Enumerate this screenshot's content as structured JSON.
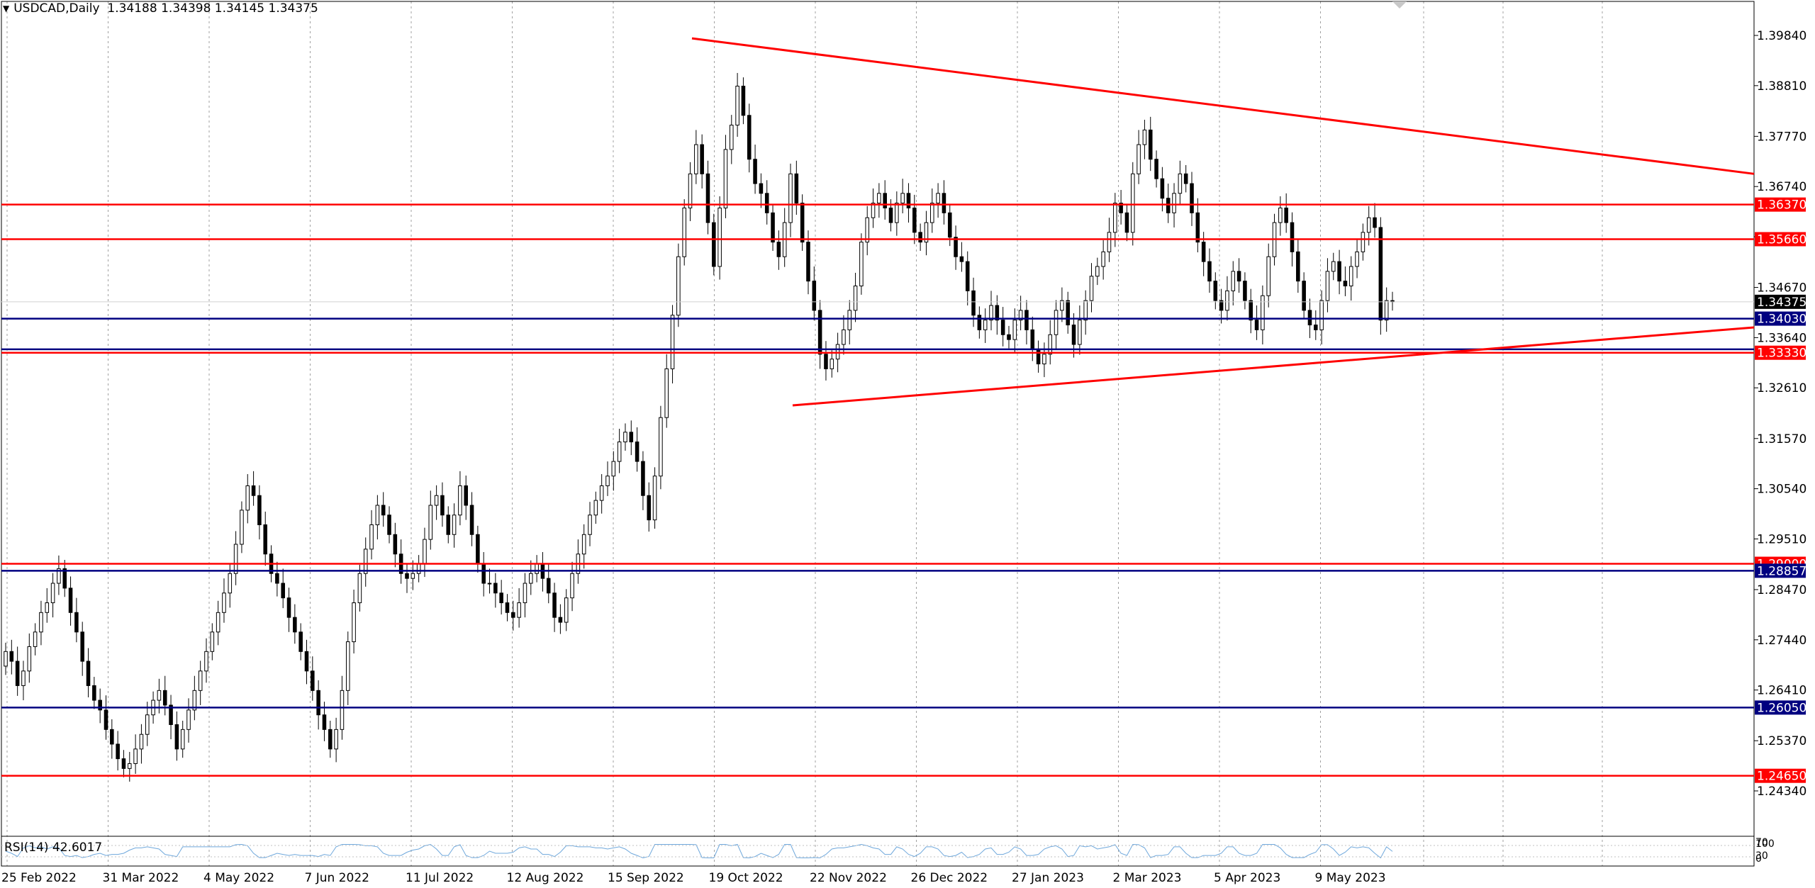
{
  "header": {
    "symbol": "USDCAD,Daily",
    "ohlc": "1.34188 1.34398 1.34145 1.34375"
  },
  "indicator": {
    "label": "RSI(14) 42.6017",
    "scale_labels": [
      "100",
      "70",
      "30",
      "0"
    ]
  },
  "colors": {
    "red_line": "#ff0000",
    "blue_line": "#000080",
    "price_label_bg": "#000000",
    "grid": "#a0a0a0",
    "rsi_line": "#6fa8dc"
  },
  "chart_data": {
    "type": "candlestick",
    "symbol": "USDCAD",
    "timeframe": "Daily",
    "ylim": [
      1.2384,
      1.4036
    ],
    "y_ticks": [
      "1.39840",
      "1.38810",
      "1.37770",
      "1.36740",
      "1.35710",
      "1.34670",
      "1.33640",
      "1.32610",
      "1.31570",
      "1.30540",
      "1.29510",
      "1.28470",
      "1.27440",
      "1.26410",
      "1.25370",
      "1.24340"
    ],
    "x_labels": [
      "25 Feb 2022",
      "31 Mar 2022",
      "4 May 2022",
      "7 Jun 2022",
      "11 Jul 2022",
      "12 Aug 2022",
      "15 Sep 2022",
      "19 Oct 2022",
      "22 Nov 2022",
      "26 Dec 2022",
      "27 Jan 2023",
      "2 Mar 2023",
      "5 Apr 2023",
      "9 May 2023"
    ],
    "current_price": "1.34375",
    "horizontal_levels": [
      {
        "price": 1.3637,
        "label": "1.36370",
        "color": "red"
      },
      {
        "price": 1.3566,
        "label": "1.35660",
        "color": "red"
      },
      {
        "price": 1.3403,
        "label": "1.34030",
        "color": "blue"
      },
      {
        "price": 1.334,
        "label": "",
        "color": "blue"
      },
      {
        "price": 1.3333,
        "label": "1.33330",
        "color": "red"
      },
      {
        "price": 1.29,
        "label": "1.29000",
        "color": "red"
      },
      {
        "price": 1.28857,
        "label": "1.28857",
        "color": "blue"
      },
      {
        "price": 1.2605,
        "label": "1.26050",
        "color": "blue"
      },
      {
        "price": 1.2465,
        "label": "1.24650",
        "color": "red"
      }
    ],
    "trendlines": [
      {
        "name": "upper",
        "from": [
          "28 Sep 2022",
          1.3978
        ],
        "to": [
          "right edge",
          1.37
        ]
      },
      {
        "name": "lower",
        "from": [
          "4 Nov 2022",
          1.3225
        ],
        "to": [
          "right edge",
          1.3385
        ]
      }
    ],
    "closes": [
      1.272,
      1.27,
      1.265,
      1.268,
      1.273,
      1.276,
      1.28,
      1.282,
      1.286,
      1.289,
      1.285,
      1.28,
      1.276,
      1.27,
      1.265,
      1.262,
      1.26,
      1.256,
      1.253,
      1.25,
      1.248,
      1.249,
      1.252,
      1.255,
      1.259,
      1.262,
      1.264,
      1.261,
      1.257,
      1.252,
      1.256,
      1.26,
      1.264,
      1.268,
      1.272,
      1.276,
      1.28,
      1.284,
      1.288,
      1.294,
      1.301,
      1.306,
      1.304,
      1.298,
      1.292,
      1.288,
      1.286,
      1.283,
      1.279,
      1.276,
      1.272,
      1.268,
      1.264,
      1.259,
      1.256,
      1.252,
      1.256,
      1.264,
      1.274,
      1.282,
      1.288,
      1.293,
      1.298,
      1.302,
      1.3,
      1.296,
      1.292,
      1.288,
      1.287,
      1.288,
      1.29,
      1.295,
      1.302,
      1.304,
      1.3,
      1.296,
      1.3,
      1.306,
      1.302,
      1.296,
      1.29,
      1.286,
      1.286,
      1.284,
      1.282,
      1.28,
      1.279,
      1.282,
      1.286,
      1.288,
      1.29,
      1.287,
      1.284,
      1.279,
      1.278,
      1.283,
      1.288,
      1.292,
      1.296,
      1.3,
      1.303,
      1.306,
      1.308,
      1.311,
      1.315,
      1.317,
      1.315,
      1.311,
      1.304,
      1.299,
      1.308,
      1.32,
      1.33,
      1.341,
      1.353,
      1.363,
      1.37,
      1.376,
      1.37,
      1.36,
      1.351,
      1.363,
      1.375,
      1.38,
      1.388,
      1.382,
      1.373,
      1.368,
      1.366,
      1.362,
      1.356,
      1.353,
      1.36,
      1.37,
      1.364,
      1.356,
      1.348,
      1.342,
      1.333,
      1.33,
      1.332,
      1.335,
      1.338,
      1.342,
      1.347,
      1.356,
      1.361,
      1.364,
      1.366,
      1.363,
      1.36,
      1.364,
      1.366,
      1.363,
      1.358,
      1.356,
      1.36,
      1.364,
      1.366,
      1.362,
      1.357,
      1.353,
      1.352,
      1.346,
      1.341,
      1.338,
      1.34,
      1.343,
      1.34,
      1.337,
      1.336,
      1.34,
      1.342,
      1.338,
      1.334,
      1.331,
      1.333,
      1.337,
      1.342,
      1.344,
      1.339,
      1.335,
      1.34,
      1.344,
      1.349,
      1.351,
      1.354,
      1.358,
      1.364,
      1.362,
      1.358,
      1.37,
      1.376,
      1.379,
      1.373,
      1.369,
      1.365,
      1.362,
      1.366,
      1.37,
      1.368,
      1.362,
      1.356,
      1.352,
      1.348,
      1.344,
      1.342,
      1.346,
      1.35,
      1.348,
      1.344,
      1.34,
      1.338,
      1.345,
      1.353,
      1.36,
      1.363,
      1.36,
      1.354,
      1.348,
      1.342,
      1.339,
      1.338,
      1.344,
      1.35,
      1.352,
      1.348,
      1.347,
      1.351,
      1.354,
      1.358,
      1.361,
      1.359,
      1.34,
      1.344,
      1.34375
    ]
  }
}
